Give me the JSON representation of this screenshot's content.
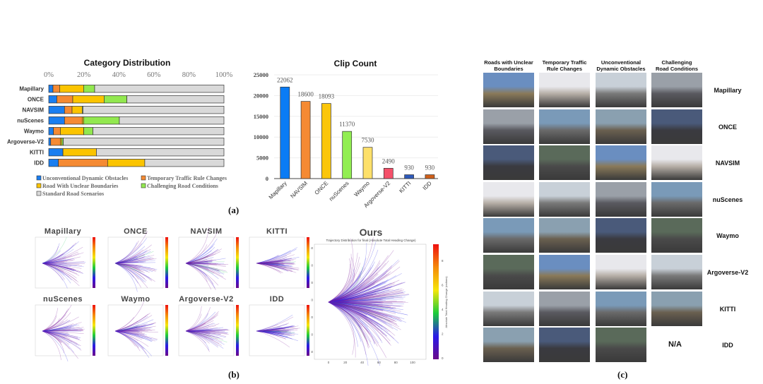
{
  "figure": {
    "panel_labels": {
      "a": "(a)",
      "b": "(b)",
      "c": "(c)"
    }
  },
  "chart_data": [
    {
      "type": "bar",
      "orientation": "horizontal",
      "stacked": true,
      "title": "Category Distribution",
      "xlabel": "",
      "ylabel": "",
      "xlim": [
        0,
        100
      ],
      "x_ticks": [
        "0%",
        "20%",
        "40%",
        "60%",
        "80%",
        "100%"
      ],
      "x_tick_values": [
        0,
        20,
        40,
        60,
        80,
        100
      ],
      "x_axis_position": "top",
      "grid": false,
      "legend_position": "bottom",
      "categories": [
        "Mapillary",
        "ONCE",
        "NAVSIM",
        "nuScenes",
        "Waymo",
        "Argoverse-V2",
        "KITTI",
        "IDD"
      ],
      "series": [
        {
          "name": "Unconventional Dynamic Obstacles",
          "color": "#1a7ef0",
          "values": [
            2.4,
            4.6,
            9.0,
            9.0,
            2.7,
            1.1,
            8.1,
            5.5
          ]
        },
        {
          "name": "Temporary Traffic Rule Changes",
          "color": "#f58a33",
          "values": [
            3.8,
            9.1,
            4.3,
            10.1,
            3.9,
            5.5,
            0,
            28.1
          ]
        },
        {
          "name": "Road With Unclear Boundaries",
          "color": "#fbc400",
          "values": [
            13.7,
            17.9,
            5.8,
            0.8,
            13.4,
            0.8,
            19.1,
            21.2
          ]
        },
        {
          "name": "Challenging Road Conditions",
          "color": "#92e84f",
          "values": [
            6.3,
            13.0,
            0.4,
            20.4,
            5.2,
            0.9,
            0,
            0
          ]
        },
        {
          "name": "Standard Road Scenarios",
          "color": "#d9d9d9",
          "values": [
            73.8,
            55.4,
            80.5,
            59.7,
            74.8,
            91.7,
            72.8,
            45.2
          ]
        }
      ]
    },
    {
      "type": "bar",
      "title": "Clip Count",
      "xlabel": "",
      "ylabel": "",
      "ylim": [
        0,
        25000
      ],
      "y_ticks": [
        "0",
        "5000",
        "10000",
        "15000",
        "20000",
        "25000"
      ],
      "y_tick_values": [
        0,
        5000,
        10000,
        15000,
        20000,
        25000
      ],
      "grid": true,
      "categories": [
        "Mapillary",
        "NAVSIM",
        "ONCE",
        "nuScenes",
        "Waymo",
        "Argoverse-V2",
        "KITTI",
        "IDD"
      ],
      "values": [
        22062,
        18600,
        18093,
        11370,
        7530,
        2490,
        930,
        930
      ],
      "data_labels": [
        "22062",
        "18600",
        "18093",
        "11370",
        "7530",
        "2490",
        "930",
        "930"
      ],
      "colors": [
        "#0a7cf5",
        "#f58a33",
        "#fbc60a",
        "#92ee52",
        "#fde06a",
        "#f5506a",
        "#2e5aba",
        "#d0601a"
      ]
    }
  ],
  "trajectory": {
    "small_panels": [
      {
        "title": "Mapillary"
      },
      {
        "title": "ONCE"
      },
      {
        "title": "NAVSIM"
      },
      {
        "title": "KITTI"
      },
      {
        "title": "nuScenes"
      },
      {
        "title": "Waymo"
      },
      {
        "title": "Argoverse-V2"
      },
      {
        "title": "IDD"
      }
    ],
    "main_panel": {
      "title": "Ours",
      "subtitle": "Trajectory Distribution for final (Absolute Total Heading Change)",
      "x_ticks": [
        "0",
        "20",
        "40",
        "60",
        "80",
        "100"
      ],
      "y_ticks": [
        "60",
        "40",
        "20",
        "0",
        "-20",
        "-40",
        "-60"
      ],
      "colorbar_ticks": [
        "0",
        "2",
        "4",
        "6",
        "8"
      ],
      "colorbar_label": "Absolute Total Heading Change (radians)",
      "colormap": [
        "#6a0a8a",
        "#2a1ae8",
        "#1acc3a",
        "#f5e60a",
        "#f58a0a",
        "#ee1010"
      ]
    }
  },
  "examples": {
    "column_headers": [
      "Roads with Unclear\nBoundaries",
      "Temporary Traffic\nRule Changes",
      "Unconventional\nDynamic Obstacles",
      "Challenging\nRoad Conditions"
    ],
    "rows": [
      {
        "dataset": "Mapillary",
        "cells": 4
      },
      {
        "dataset": "ONCE",
        "cells": 4
      },
      {
        "dataset": "NAVSIM",
        "cells": 4
      },
      {
        "dataset": "nuScenes",
        "cells": 4
      },
      {
        "dataset": "Waymo",
        "cells": 4
      },
      {
        "dataset": "Argoverse-V2",
        "cells": 4
      },
      {
        "dataset": "KITTI",
        "cells": 4
      },
      {
        "dataset": "IDD",
        "cells": 3,
        "missing_label": "N/A"
      }
    ]
  }
}
